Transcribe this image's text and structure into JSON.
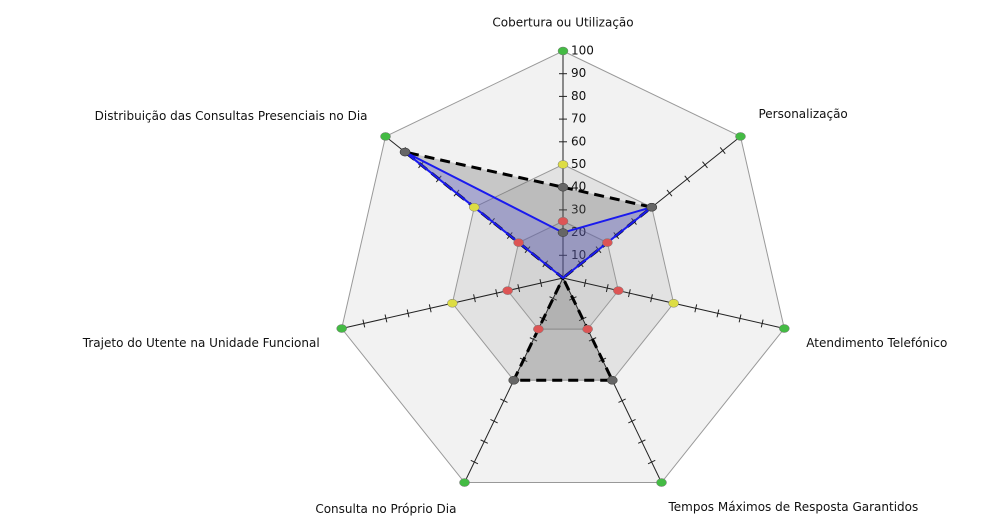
{
  "chart_data": {
    "type": "radar",
    "categories": [
      "Cobertura ou Utilização",
      "Personalização",
      "Atendimento Telefónico",
      "Tempos Máximos de Resposta Garantidos",
      "Consulta no Próprio Dia",
      "Trajeto do Utente na Unidade Funcional",
      "Distribuição das Consultas Presenciais no Dia"
    ],
    "rlim": [
      0,
      100
    ],
    "rticks": [
      10,
      20,
      30,
      40,
      50,
      60,
      70,
      80,
      90,
      100
    ],
    "rings": [
      {
        "value": 100,
        "color": "#44bb44",
        "fill": "#f2f2f2"
      },
      {
        "value": 50,
        "color": "#dddd44",
        "fill": "#e2e2e2"
      },
      {
        "value": 25,
        "color": "#dd5555",
        "fill": "#d4d4d4"
      }
    ],
    "series": [
      {
        "color": "#000000",
        "style": "dashed",
        "values": [
          40,
          50,
          0,
          50,
          50,
          0,
          89
        ]
      },
      {
        "color": "#1a1aee",
        "style": "solid",
        "values": [
          20,
          50,
          0,
          0,
          0,
          0,
          89
        ]
      }
    ]
  }
}
